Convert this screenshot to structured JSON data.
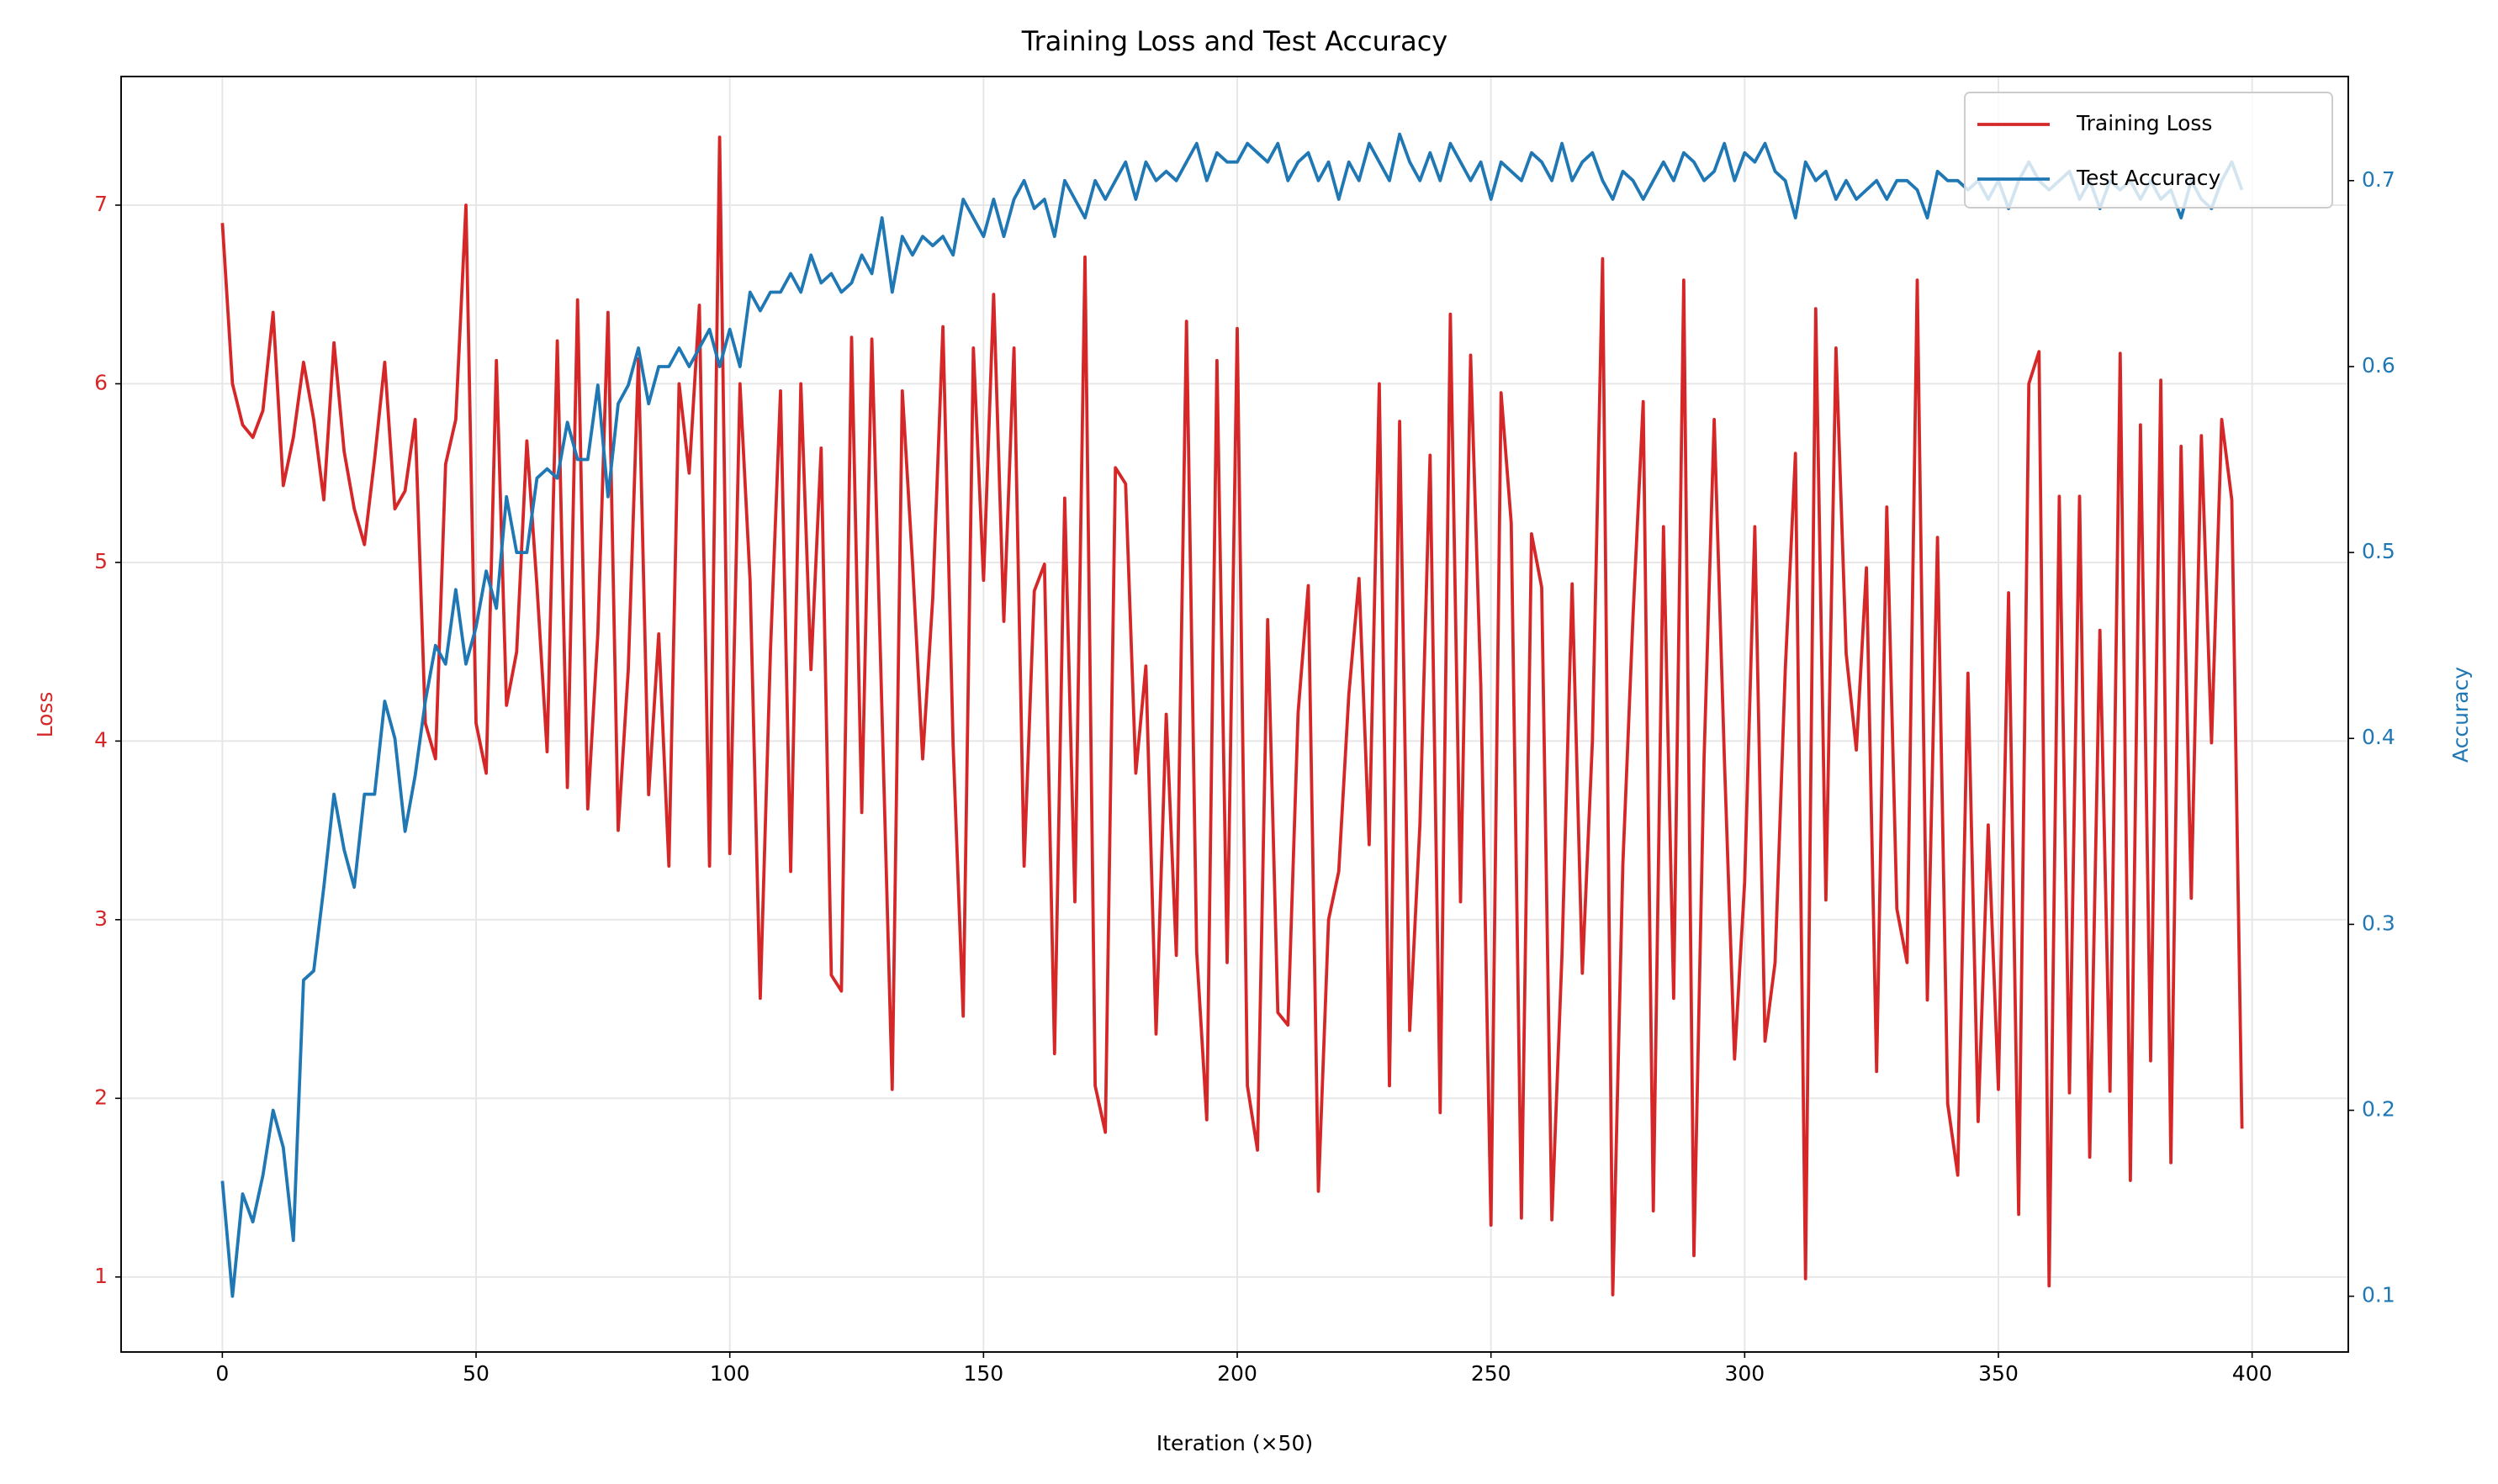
{
  "chart_data": {
    "type": "line",
    "title": "Training Loss and Test Accuracy",
    "x_label": "Iteration (×50)",
    "y_label": "Loss",
    "y2_label": "Accuracy",
    "xlim": [
      -19.95,
      418.95
    ],
    "xticks": [
      0,
      50,
      100,
      150,
      200,
      250,
      300,
      350,
      400
    ],
    "ylim": [
      0.58,
      7.72
    ],
    "yticks": [
      1,
      2,
      3,
      4,
      5,
      6,
      7
    ],
    "y2lim": [
      0.07,
      0.756
    ],
    "y2ticks": [
      0.1,
      0.2,
      0.3,
      0.4,
      0.5,
      0.6,
      0.7
    ],
    "grid": true,
    "legend": "upper right",
    "x": [
      0,
      2,
      4,
      6,
      8,
      10,
      12,
      14,
      16,
      18,
      20,
      22,
      24,
      26,
      28,
      30,
      32,
      34,
      36,
      38,
      40,
      42,
      44,
      46,
      48,
      50,
      52,
      54,
      56,
      58,
      60,
      62,
      64,
      66,
      68,
      70,
      72,
      74,
      76,
      78,
      80,
      82,
      84,
      86,
      88,
      90,
      92,
      94,
      96,
      98,
      100,
      102,
      104,
      106,
      108,
      110,
      112,
      114,
      116,
      118,
      120,
      122,
      124,
      126,
      128,
      130,
      132,
      134,
      136,
      138,
      140,
      142,
      144,
      146,
      148,
      150,
      152,
      154,
      156,
      158,
      160,
      162,
      164,
      166,
      168,
      170,
      172,
      174,
      176,
      178,
      180,
      182,
      184,
      186,
      188,
      190,
      192,
      194,
      196,
      198,
      200,
      202,
      204,
      206,
      208,
      210,
      212,
      214,
      216,
      218,
      220,
      222,
      224,
      226,
      228,
      230,
      232,
      234,
      236,
      238,
      240,
      242,
      244,
      246,
      248,
      250,
      252,
      254,
      256,
      258,
      260,
      262,
      264,
      266,
      268,
      270,
      272,
      274,
      276,
      278,
      280,
      282,
      284,
      286,
      288,
      290,
      292,
      294,
      296,
      298,
      300,
      302,
      304,
      306,
      308,
      310,
      312,
      314,
      316,
      318,
      320,
      322,
      324,
      326,
      328,
      330,
      332,
      334,
      336,
      338,
      340,
      342,
      344,
      346,
      348,
      350,
      352,
      354,
      356,
      358,
      360,
      362,
      364,
      366,
      368,
      370,
      372,
      374,
      376,
      378,
      380,
      382,
      384,
      386,
      388,
      390,
      392,
      394,
      396,
      398
    ],
    "series": [
      {
        "name": "Training Loss",
        "color": "#d62728",
        "axis": "y",
        "values": [
          6.9,
          6.0,
          5.77,
          5.7,
          5.85,
          6.4,
          5.43,
          5.7,
          6.12,
          5.8,
          5.35,
          6.23,
          5.62,
          5.3,
          5.1,
          5.58,
          6.12,
          5.3,
          5.4,
          5.8,
          4.1,
          3.9,
          5.55,
          5.8,
          7.0,
          4.1,
          3.82,
          6.13,
          4.2,
          4.5,
          5.68,
          4.87,
          3.94,
          6.24,
          3.74,
          6.47,
          3.62,
          4.6,
          6.4,
          3.5,
          4.4,
          6.14,
          3.7,
          4.6,
          3.3,
          6.0,
          5.5,
          6.44,
          3.3,
          7.38,
          3.37,
          6.0,
          4.9,
          2.56,
          4.5,
          5.96,
          3.27,
          6.0,
          4.4,
          5.64,
          2.69,
          2.6,
          6.26,
          3.6,
          6.25,
          4.15,
          2.05,
          5.96,
          5.0,
          3.9,
          4.8,
          6.32,
          3.98,
          2.46,
          6.2,
          4.9,
          6.5,
          4.67,
          6.2,
          3.3,
          4.84,
          4.99,
          2.25,
          5.36,
          3.1,
          6.71,
          2.07,
          1.81,
          5.53,
          5.44,
          3.82,
          4.42,
          2.36,
          4.15,
          2.8,
          6.35,
          2.82,
          1.88,
          6.13,
          2.76,
          6.31,
          2.07,
          1.71,
          4.68,
          2.48,
          2.41,
          4.16,
          4.87,
          1.48,
          3.0,
          3.27,
          4.26,
          4.91,
          3.42,
          6.0,
          2.07,
          5.79,
          2.38,
          3.53,
          5.6,
          1.92,
          6.39,
          3.1,
          6.16,
          4.31,
          1.29,
          5.95,
          5.22,
          1.33,
          5.16,
          4.86,
          1.32,
          2.8,
          4.88,
          2.7,
          4.0,
          6.7,
          0.9,
          3.31,
          4.7,
          5.9,
          1.37,
          5.2,
          2.56,
          6.58,
          1.12,
          3.91,
          5.8,
          3.9,
          2.22,
          3.21,
          5.2,
          2.32,
          2.76,
          4.4,
          5.61,
          0.99,
          6.42,
          3.11,
          6.2,
          4.49,
          3.95,
          4.97,
          2.15,
          5.31,
          3.06,
          2.76,
          6.58,
          2.55,
          5.14,
          1.97,
          1.57,
          4.38,
          1.87,
          3.53,
          2.05,
          4.83,
          1.35,
          6.0,
          6.18,
          0.95,
          5.37,
          2.03,
          5.37,
          1.67,
          4.62,
          2.04,
          6.17,
          1.54,
          5.77,
          2.21,
          6.02,
          1.64,
          5.65,
          3.12,
          5.71,
          3.99,
          5.8,
          5.35,
          1.83
        ]
      },
      {
        "name": "Test Accuracy",
        "color": "#1f77b4",
        "axis": "y2",
        "values": [
          0.162,
          0.1,
          0.155,
          0.14,
          0.165,
          0.2,
          0.18,
          0.13,
          0.27,
          0.275,
          0.32,
          0.37,
          0.34,
          0.32,
          0.37,
          0.37,
          0.42,
          0.4,
          0.35,
          0.38,
          0.42,
          0.45,
          0.44,
          0.48,
          0.44,
          0.46,
          0.49,
          0.47,
          0.53,
          0.5,
          0.5,
          0.54,
          0.545,
          0.54,
          0.57,
          0.55,
          0.55,
          0.59,
          0.53,
          0.58,
          0.59,
          0.61,
          0.58,
          0.6,
          0.6,
          0.61,
          0.6,
          0.61,
          0.62,
          0.6,
          0.62,
          0.6,
          0.64,
          0.63,
          0.64,
          0.64,
          0.65,
          0.64,
          0.66,
          0.645,
          0.65,
          0.64,
          0.645,
          0.66,
          0.65,
          0.68,
          0.64,
          0.67,
          0.66,
          0.67,
          0.665,
          0.67,
          0.66,
          0.69,
          0.68,
          0.67,
          0.69,
          0.67,
          0.69,
          0.7,
          0.685,
          0.69,
          0.67,
          0.7,
          0.69,
          0.68,
          0.7,
          0.69,
          0.7,
          0.71,
          0.69,
          0.71,
          0.7,
          0.705,
          0.7,
          0.71,
          0.72,
          0.7,
          0.715,
          0.71,
          0.71,
          0.72,
          0.715,
          0.71,
          0.72,
          0.7,
          0.71,
          0.715,
          0.7,
          0.71,
          0.69,
          0.71,
          0.7,
          0.72,
          0.71,
          0.7,
          0.725,
          0.71,
          0.7,
          0.715,
          0.7,
          0.72,
          0.71,
          0.7,
          0.71,
          0.69,
          0.71,
          0.705,
          0.7,
          0.715,
          0.71,
          0.7,
          0.72,
          0.7,
          0.71,
          0.715,
          0.7,
          0.69,
          0.705,
          0.7,
          0.69,
          0.7,
          0.71,
          0.7,
          0.715,
          0.71,
          0.7,
          0.705,
          0.72,
          0.7,
          0.715,
          0.71,
          0.72,
          0.705,
          0.7,
          0.68,
          0.71,
          0.7,
          0.705,
          0.69,
          0.7,
          0.69,
          0.695,
          0.7,
          0.69,
          0.7,
          0.7,
          0.695,
          0.68,
          0.705,
          0.7,
          0.7,
          0.695,
          0.7,
          0.69,
          0.7,
          0.685,
          0.7,
          0.71,
          0.7,
          0.695,
          0.7,
          0.705,
          0.69,
          0.7,
          0.685,
          0.7,
          0.695,
          0.7,
          0.69,
          0.7,
          0.69,
          0.695,
          0.68,
          0.7,
          0.69,
          0.685,
          0.7,
          0.71,
          0.695
        ]
      }
    ]
  }
}
